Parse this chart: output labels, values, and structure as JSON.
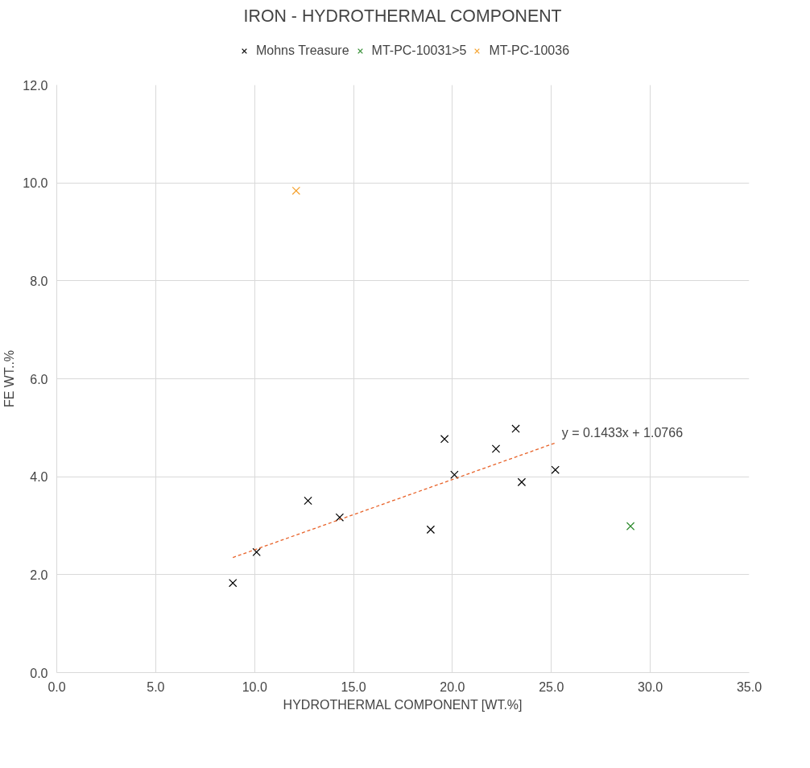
{
  "chart_data": {
    "type": "scatter",
    "title": "IRON - HYDROTHERMAL COMPONENT",
    "xlabel": "HYDROTHERMAL COMPONENT [WT.%]",
    "ylabel": "FE WT..%",
    "series": [
      {
        "name": "Mohns Treasure",
        "color": "#000000",
        "x": [
          8.9,
          10.1,
          12.7,
          14.3,
          18.9,
          19.6,
          20.1,
          22.2,
          23.2,
          23.5,
          25.2
        ],
        "values": [
          1.83,
          2.46,
          3.51,
          3.17,
          2.92,
          4.77,
          4.04,
          4.57,
          4.98,
          3.89,
          4.14
        ]
      },
      {
        "name": "MT-PC-10031>5",
        "color": "#2e8b2e",
        "x": [
          29.0
        ],
        "values": [
          2.99
        ]
      },
      {
        "name": "MT-PC-10036",
        "color": "#f5a02a",
        "x": [
          12.1
        ],
        "values": [
          9.84
        ]
      },
      {
        "type": "line",
        "color": "#e8632a",
        "line_style": "dashed",
        "marker": "none",
        "x": [
          8.9,
          25.2
        ],
        "values": [
          2.35,
          4.69
        ]
      }
    ],
    "marker": "cross",
    "xlim": [
      0,
      35
    ],
    "ylim": [
      0,
      12
    ],
    "xticks": [
      {
        "value": 0,
        "label": "0.0"
      },
      {
        "value": 5,
        "label": "5.0"
      },
      {
        "value": 10,
        "label": "10.0"
      },
      {
        "value": 15,
        "label": "15.0"
      },
      {
        "value": 20,
        "label": "20.0"
      },
      {
        "value": 25,
        "label": "25.0"
      },
      {
        "value": 30,
        "label": "30.0"
      },
      {
        "value": 35,
        "label": "35.0"
      }
    ],
    "yticks": [
      {
        "value": 0,
        "label": "0.0"
      },
      {
        "value": 2,
        "label": "2.0"
      },
      {
        "value": 4,
        "label": "4.0"
      },
      {
        "value": 6,
        "label": "6.0"
      },
      {
        "value": 8,
        "label": "8.0"
      },
      {
        "value": 10,
        "label": "10.0"
      },
      {
        "value": 12,
        "label": "12.0"
      }
    ],
    "annotations": [
      {
        "text": "y = 0.1433x + 1.0766",
        "x": 25.2,
        "y": 4.69
      }
    ],
    "grid": true,
    "legend": "top"
  }
}
